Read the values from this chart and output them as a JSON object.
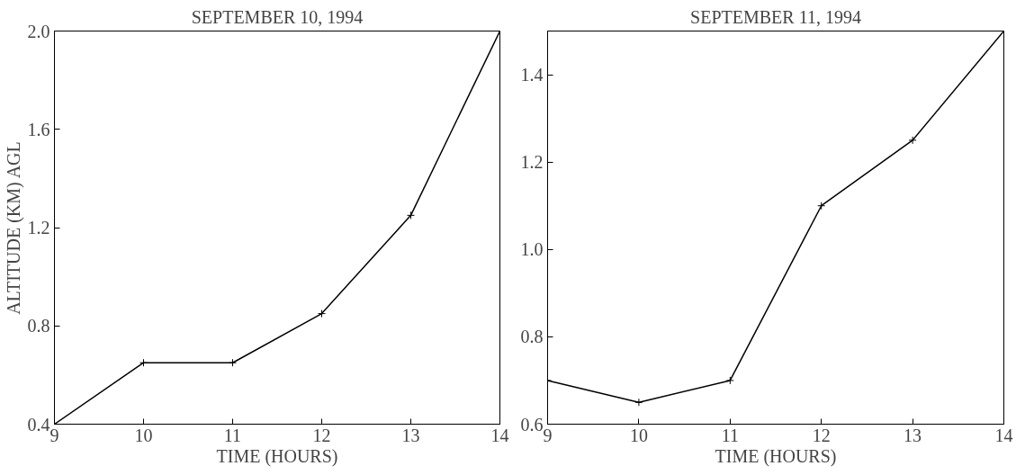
{
  "chart_data": [
    {
      "type": "line",
      "title": "SEPTEMBER 10, 1994",
      "xlabel": "TIME (HOURS)",
      "ylabel": "ALTITUDE (KM) AGL",
      "x": [
        9,
        10,
        11,
        12,
        13,
        14
      ],
      "series": [
        {
          "color": "#000000",
          "values": [
            0.4,
            0.65,
            0.65,
            0.85,
            1.25,
            2.0
          ]
        }
      ],
      "xlim": [
        9,
        14
      ],
      "xticks": [
        9,
        10,
        11,
        12,
        13,
        14
      ],
      "ylim": [
        0.4,
        2.0
      ],
      "yticks": [
        0.4,
        0.8,
        1.2,
        1.6,
        {
          "value": 2,
          "label": "2.0"
        }
      ],
      "marker": "cross",
      "line_style": "solid"
    },
    {
      "type": "line",
      "title": "SEPTEMBER 11, 1994",
      "xlabel": "TIME (HOURS)",
      "x": [
        9,
        10,
        11,
        12,
        13,
        14
      ],
      "series": [
        {
          "color": "#000000",
          "values": [
            0.7,
            0.65,
            0.7,
            1.1,
            1.25,
            1.5
          ]
        }
      ],
      "xlim": [
        9,
        14
      ],
      "xticks": [
        9,
        10,
        11,
        12,
        13,
        14
      ],
      "ylim": [
        0.6,
        1.5
      ],
      "yticks": [
        0.6,
        0.8,
        {
          "value": 1,
          "label": "1.0"
        },
        1.2,
        1.4
      ],
      "marker": "cross",
      "line_style": "solid"
    }
  ]
}
